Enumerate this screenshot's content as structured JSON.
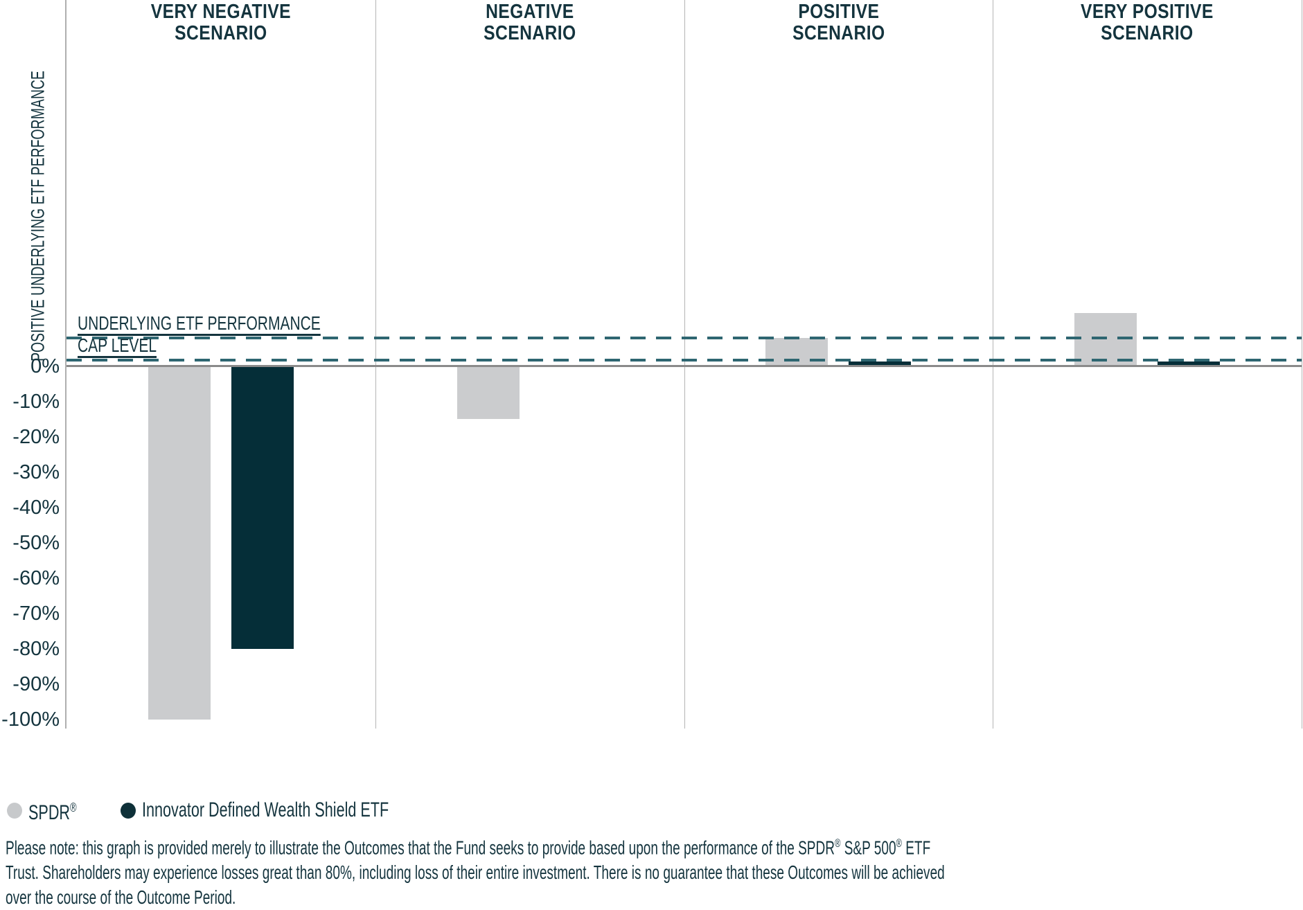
{
  "chart_data": {
    "type": "bar",
    "title": "",
    "categories": [
      "VERY NEGATIVE\nSCENARIO",
      "NEGATIVE\nSCENARIO",
      "POSITIVE\nSCENARIO",
      "VERY POSITIVE\nSCENARIO"
    ],
    "series": [
      {
        "name": "SPDR®",
        "color": "#CBCCCE",
        "values": [
          -100,
          -15,
          8,
          15
        ]
      },
      {
        "name": "Innovator Defined Wealth Shield ETF",
        "color": "#052E38",
        "values": [
          -80,
          0,
          1.3,
          1.3
        ]
      }
    ],
    "reference_lines": [
      {
        "label": "UNDERLYING ETF PERFORMANCE",
        "value": 8
      },
      {
        "label": "CAP LEVEL",
        "value": 1.6
      }
    ],
    "y_axis": {
      "title": "POSITIVE UNDERLYING ETF PERFORMANCE",
      "range": [
        -102.5,
        103.5
      ],
      "ticks": [
        {
          "label": "0%",
          "value": 0
        },
        {
          "label": "-10%",
          "value": -10
        },
        {
          "label": "-20%",
          "value": -20
        },
        {
          "label": "-30%",
          "value": -30
        },
        {
          "label": "-40%",
          "value": -40
        },
        {
          "label": "-50%",
          "value": -50
        },
        {
          "label": "-60%",
          "value": -60
        },
        {
          "label": "-70%",
          "value": -70
        },
        {
          "label": "-80%",
          "value": -80
        },
        {
          "label": "-90%",
          "value": -90
        },
        {
          "label": "-100%",
          "value": -100
        }
      ],
      "gridlines": false
    },
    "zero_line": true,
    "legend_position": "bottom-left"
  },
  "colors": {
    "text": "#14343E",
    "dashed_line": "#2E6671",
    "axis_line": "#B5B5B5",
    "zero_line": "#8A8A8A",
    "spdr_bar": "#CBCCCE",
    "innovator_bar": "#052E38",
    "legend_spdr_dot": "#C7C9CB",
    "legend_innovator_dot": "#0E3038"
  },
  "legend": {
    "items": [
      {
        "label": "SPDR®",
        "color": "#C7C9CB"
      },
      {
        "label": "Innovator Defined Wealth Shield ETF",
        "color": "#0E3038"
      }
    ]
  },
  "disclaimer": {
    "lines": [
      "Please note: this graph is provided merely to illustrate the Outcomes that the Fund seeks to provide based upon the performance of the SPDR® S&P 500® ETF",
      "Trust. Shareholders may experience losses great than 80%, including loss of their entire investment. There is no guarantee that these Outcomes will be achieved",
      "over the course of the Outcome Period."
    ]
  }
}
